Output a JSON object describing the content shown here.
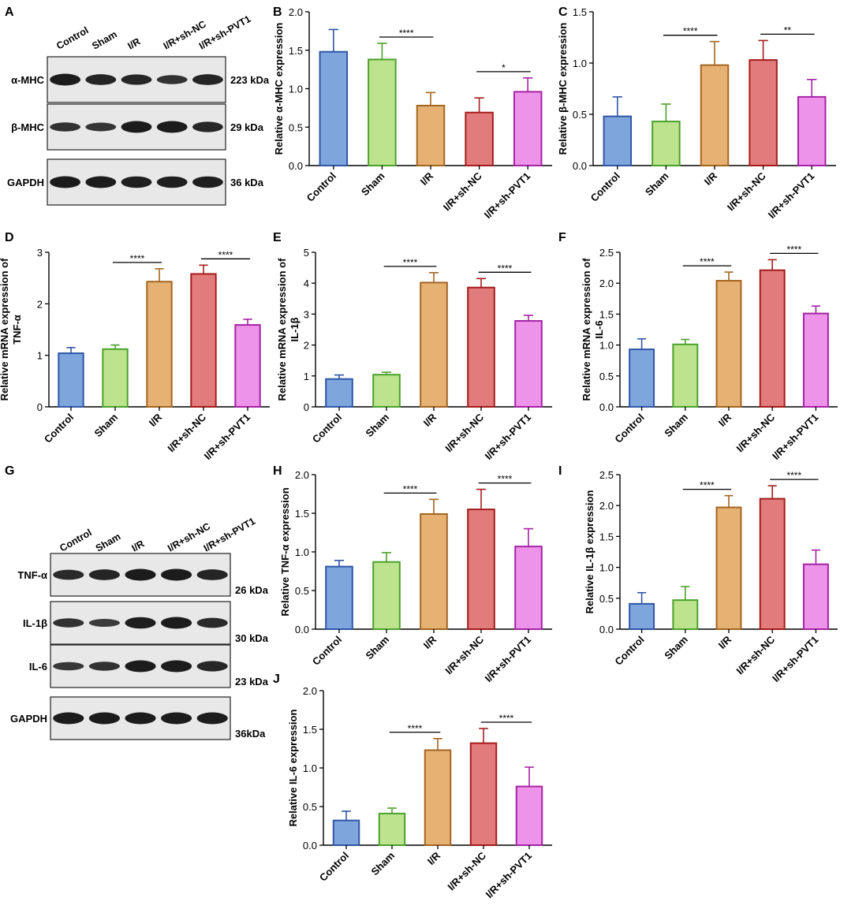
{
  "colors": {
    "fills": [
      "#7ea6dc",
      "#bde38e",
      "#e6b274",
      "#e27b7b",
      "#ee93ea"
    ],
    "strokes": [
      "#2f55a6",
      "#4aa22a",
      "#a46421",
      "#a51c1c",
      "#a523a5"
    ]
  },
  "panel_labels": [
    "A",
    "B",
    "C",
    "D",
    "E",
    "F",
    "G",
    "H",
    "I",
    "J"
  ],
  "blot_a": {
    "lanes": [
      "Control",
      "Sham",
      "I/R",
      "I/R+sh-NC",
      "I/R+sh-PVT1"
    ],
    "rows": [
      {
        "label": "α-MHC",
        "size": "223 kDa",
        "intensity": [
          1.0,
          0.85,
          0.8,
          0.6,
          0.85
        ]
      },
      {
        "label": "β-MHC",
        "size": "29 kDa",
        "intensity": [
          0.6,
          0.55,
          1.0,
          1.0,
          0.8
        ]
      },
      {
        "label": "GAPDH",
        "size": "36 kDa",
        "intensity": [
          1.0,
          1.0,
          0.95,
          0.95,
          0.95
        ]
      }
    ]
  },
  "blot_g": {
    "lanes": [
      "Control",
      "Sham",
      "I/R",
      "I/R+sh-NC",
      "I/R+sh-PVT1"
    ],
    "rows": [
      {
        "label": "TNF-α",
        "size": "26 kDa",
        "intensity": [
          0.75,
          0.85,
          1.0,
          1.0,
          0.85
        ]
      },
      {
        "label": "IL-1β",
        "size": "30 kDa",
        "intensity": [
          0.6,
          0.45,
          0.95,
          1.0,
          0.75
        ]
      },
      {
        "label": "IL-6",
        "size": "23 kDa",
        "intensity": [
          0.5,
          0.6,
          1.0,
          1.0,
          0.8
        ]
      },
      {
        "label": "GAPDH",
        "size": "36kDa",
        "intensity": [
          1.0,
          1.0,
          1.0,
          1.0,
          1.0
        ]
      }
    ]
  },
  "chart_data": [
    {
      "id": "B",
      "type": "bar",
      "categories": [
        "Control",
        "Sham",
        "I/R",
        "I/R+sh-NC",
        "I/R+sh-PVT1"
      ],
      "values": [
        1.48,
        1.38,
        0.78,
        0.69,
        0.96
      ],
      "errors": [
        0.29,
        0.21,
        0.17,
        0.19,
        0.18
      ],
      "ylabel": "Relative α-MHC expression",
      "ylim": [
        0,
        2.0
      ],
      "ticks": [
        "0.0",
        "0.5",
        "1.0",
        "1.5",
        "2.0"
      ],
      "sig": [
        {
          "from": 1,
          "to": 2,
          "label": "****"
        },
        {
          "from": 3,
          "to": 4,
          "label": "*"
        }
      ]
    },
    {
      "id": "C",
      "type": "bar",
      "categories": [
        "Control",
        "Sham",
        "I/R",
        "I/R+sh-NC",
        "I/R+sh-PVT1"
      ],
      "values": [
        0.48,
        0.43,
        0.98,
        1.03,
        0.67
      ],
      "errors": [
        0.19,
        0.17,
        0.23,
        0.19,
        0.17
      ],
      "ylabel": "Relative β-MHC expression",
      "ylim": [
        0,
        1.5
      ],
      "ticks": [
        "0.0",
        "0.5",
        "1.0",
        "1.5"
      ],
      "sig": [
        {
          "from": 1,
          "to": 2,
          "label": "****"
        },
        {
          "from": 3,
          "to": 4,
          "label": "**"
        }
      ]
    },
    {
      "id": "D",
      "type": "bar",
      "categories": [
        "Control",
        "Sham",
        "I/R",
        "I/R+sh-NC",
        "I/R+sh-PVT1"
      ],
      "values": [
        1.04,
        1.12,
        2.43,
        2.58,
        1.59
      ],
      "errors": [
        0.11,
        0.08,
        0.25,
        0.17,
        0.11
      ],
      "ylabel": "Relative mRNA expression of TNF-α",
      "ylabel_lines": [
        "Relative mRNA expression of",
        "TNF-α"
      ],
      "ylim": [
        0,
        3
      ],
      "ticks": [
        "0",
        "1",
        "2",
        "3"
      ],
      "sig": [
        {
          "from": 1,
          "to": 2,
          "label": "****"
        },
        {
          "from": 3,
          "to": 4,
          "label": "****"
        }
      ]
    },
    {
      "id": "E",
      "type": "bar",
      "categories": [
        "Control",
        "Sham",
        "I/R",
        "I/R+sh-NC",
        "I/R+sh-PVT1"
      ],
      "values": [
        0.9,
        1.04,
        4.02,
        3.86,
        2.78
      ],
      "errors": [
        0.13,
        0.08,
        0.32,
        0.29,
        0.18
      ],
      "ylabel": "Relative mRNA expression of IL-1β",
      "ylabel_lines": [
        "Relative mRNA expression of",
        "IL-1β"
      ],
      "ylim": [
        0,
        5
      ],
      "ticks": [
        "0",
        "1",
        "2",
        "3",
        "4",
        "5"
      ],
      "sig": [
        {
          "from": 1,
          "to": 2,
          "label": "****"
        },
        {
          "from": 3,
          "to": 4,
          "label": "****"
        }
      ]
    },
    {
      "id": "F",
      "type": "bar",
      "categories": [
        "Control",
        "Sham",
        "I/R",
        "I/R+sh-NC",
        "I/R+sh-PVT1"
      ],
      "values": [
        0.93,
        1.01,
        2.04,
        2.21,
        1.51
      ],
      "errors": [
        0.17,
        0.08,
        0.14,
        0.17,
        0.12
      ],
      "ylabel": "Relative mRNA expression of IL-6",
      "ylabel_lines": [
        "Relative mRNA expression of",
        "IL-6"
      ],
      "ylim": [
        0,
        2.5
      ],
      "ticks": [
        "0.0",
        "0.5",
        "1.0",
        "1.5",
        "2.0",
        "2.5"
      ],
      "sig": [
        {
          "from": 1,
          "to": 2,
          "label": "****"
        },
        {
          "from": 3,
          "to": 4,
          "label": "****"
        }
      ]
    },
    {
      "id": "H",
      "type": "bar",
      "categories": [
        "Control",
        "Sham",
        "I/R",
        "I/R+sh-NC",
        "I/R+sh-PVT1"
      ],
      "values": [
        0.81,
        0.87,
        1.49,
        1.55,
        1.07
      ],
      "errors": [
        0.08,
        0.12,
        0.19,
        0.26,
        0.23
      ],
      "ylabel": "Relative TNF-α expression",
      "ylim": [
        0,
        2.0
      ],
      "ticks": [
        "0.0",
        "0.5",
        "1.0",
        "1.5",
        "2.0"
      ],
      "sig": [
        {
          "from": 1,
          "to": 2,
          "label": "****"
        },
        {
          "from": 3,
          "to": 4,
          "label": "****"
        }
      ]
    },
    {
      "id": "I",
      "type": "bar",
      "categories": [
        "Control",
        "Sham",
        "I/R",
        "I/R+sh-NC",
        "I/R+sh-PVT1"
      ],
      "values": [
        0.41,
        0.47,
        1.97,
        2.11,
        1.05
      ],
      "errors": [
        0.18,
        0.22,
        0.19,
        0.21,
        0.23
      ],
      "ylabel": "Relative IL-1β expression",
      "ylim": [
        0,
        2.5
      ],
      "ticks": [
        "0.0",
        "0.5",
        "1.0",
        "1.5",
        "2.0",
        "2.5"
      ],
      "sig": [
        {
          "from": 1,
          "to": 2,
          "label": "****"
        },
        {
          "from": 3,
          "to": 4,
          "label": "****"
        }
      ]
    },
    {
      "id": "J",
      "type": "bar",
      "categories": [
        "Control",
        "Sham",
        "I/R",
        "I/R+sh-NC",
        "I/R+sh-PVT1"
      ],
      "values": [
        0.32,
        0.41,
        1.23,
        1.32,
        0.76
      ],
      "errors": [
        0.12,
        0.07,
        0.15,
        0.19,
        0.25
      ],
      "ylabel": "Relative IL-6 expression",
      "ylim": [
        0,
        2.0
      ],
      "ticks": [
        "0.0",
        "0.5",
        "1.0",
        "1.5",
        "2.0"
      ],
      "sig": [
        {
          "from": 1,
          "to": 2,
          "label": "****"
        },
        {
          "from": 3,
          "to": 4,
          "label": "****"
        }
      ]
    }
  ]
}
